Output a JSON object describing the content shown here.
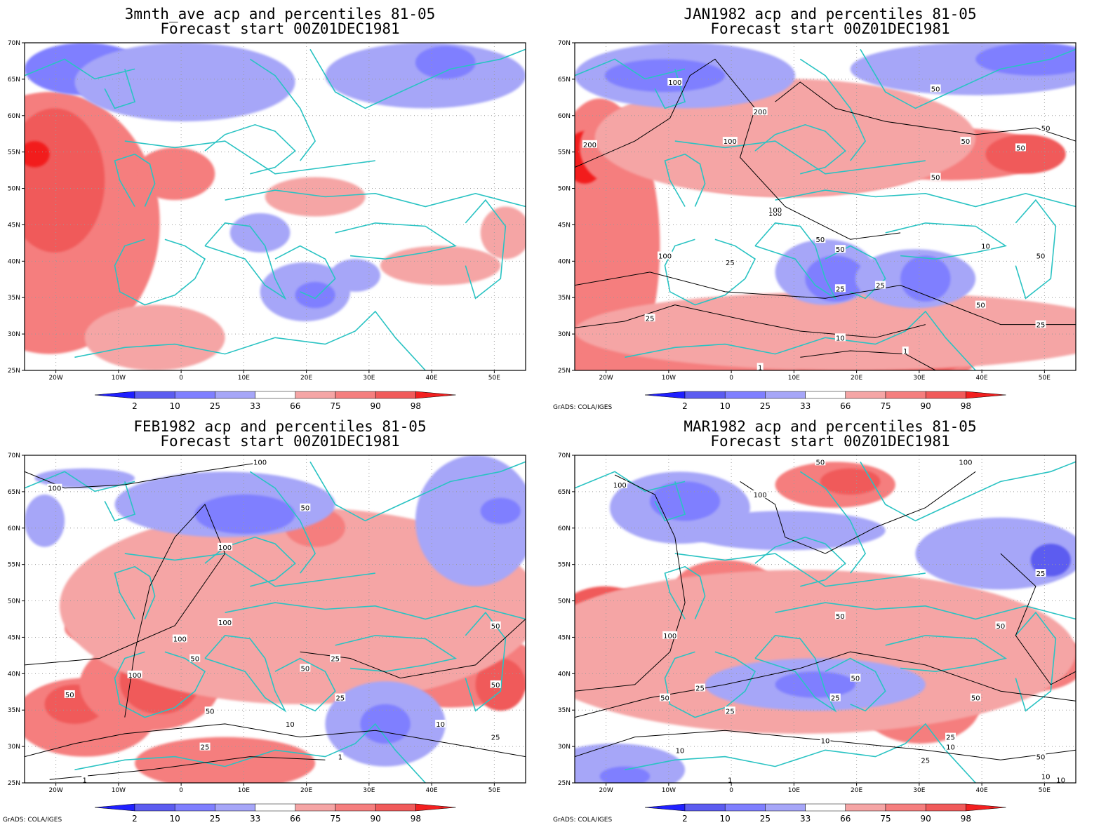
{
  "credit": "GrADS: COLA/IGES",
  "colors": {
    "land_outline": "#2ac3c3",
    "contour": "#000000",
    "shade_levels": [
      "#2020ff",
      "#5c5cf0",
      "#7f7fff",
      "#a6a6f8",
      "#ffffff",
      "#f5a5a5",
      "#f57e7e",
      "#f05a5a",
      "#f21f1f"
    ]
  },
  "axes": {
    "lat_labels": [
      "70N",
      "65N",
      "60N",
      "55N",
      "50N",
      "45N",
      "40N",
      "35N",
      "30N",
      "25N"
    ],
    "lon_labels": [
      "20W",
      "10W",
      "0",
      "10E",
      "20E",
      "30E",
      "40E",
      "50E"
    ]
  },
  "colorbar": {
    "labels": [
      "2",
      "10",
      "25",
      "33",
      "66",
      "75",
      "90",
      "98"
    ]
  },
  "panels": [
    {
      "title1": "3mnth_ave acp and percentiles 81-05",
      "title2": "Forecast start 00Z01DEC1981",
      "credit": "",
      "contour_labels": []
    },
    {
      "title1": "JAN1982 acp and percentiles 81-05",
      "title2": "Forecast start 00Z01DEC1981",
      "credit": "GrADS: COLA/IGES",
      "contour_labels": [
        "100",
        "200",
        "50",
        "200",
        "100",
        "50",
        "50",
        "50",
        "50",
        "100",
        "25",
        "50",
        "25",
        "10",
        "25",
        "50",
        "25",
        "1",
        "10",
        "1",
        "25",
        "50",
        "100",
        "100",
        "50"
      ]
    },
    {
      "title1": "FEB1982 acp and percentiles 81-05",
      "title2": "Forecast start 00Z01DEC1981",
      "credit": "GrADS: COLA/IGES",
      "contour_labels": [
        "100",
        "100",
        "50",
        "100",
        "100",
        "100",
        "50",
        "100",
        "50",
        "25",
        "50",
        "50",
        "25",
        "50",
        "10",
        "10",
        "1",
        "25",
        "50",
        "1",
        "25"
      ]
    },
    {
      "title1": "MAR1982 acp and percentiles 81-05",
      "title2": "Forecast start 00Z01DEC1981",
      "credit": "GrADS: COLA/IGES",
      "contour_labels": [
        "100",
        "50",
        "100",
        "100",
        "25",
        "100",
        "50",
        "50",
        "50",
        "50",
        "25",
        "25",
        "25",
        "10",
        "10",
        "1",
        "10",
        "50",
        "10",
        "25",
        "50",
        "25",
        "10"
      ]
    }
  ]
}
